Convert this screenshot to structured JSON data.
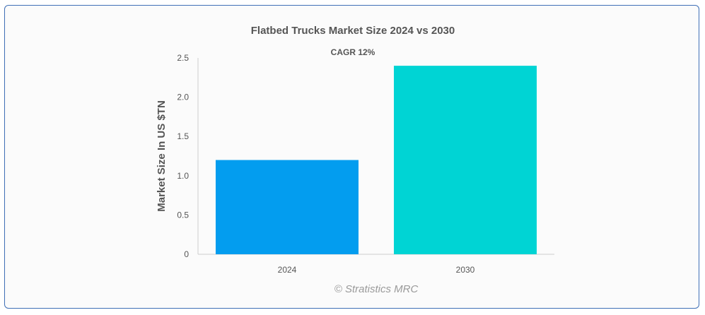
{
  "chart_data": {
    "type": "bar",
    "title": "Flatbed Trucks Market Size 2024 vs 2030",
    "subtitle": "CAGR 12%",
    "categories": [
      "2024",
      "2030"
    ],
    "values": [
      1.2,
      2.4
    ],
    "colors": [
      "#039def",
      "#00d4d4"
    ],
    "xlabel": "",
    "ylabel": "Market Size In US $TN",
    "ylim": [
      0,
      2.5
    ],
    "yticks": [
      "0",
      "0.5",
      "1.0",
      "1.5",
      "2.0",
      "2.5"
    ],
    "grid": false,
    "legend": "none"
  },
  "credit": "© Stratistics MRC"
}
